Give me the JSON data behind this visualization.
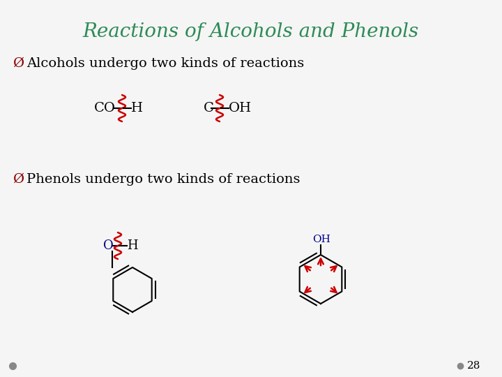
{
  "title": "Reactions of Alcohols and Phenols",
  "title_color": "#2E8B57",
  "title_fontsize": 20,
  "bullet1": "Alcohols undergo two kinds of reactions",
  "bullet2": "Phenols undergo two kinds of reactions",
  "bullet_color": "#8B0000",
  "bullet_fontsize": 14,
  "background_color": "#f0f0f0",
  "text_color": "#000000",
  "page_number": "28",
  "dot_color": "#888888",
  "arrow_color": "#CC0000",
  "blue_color": "#00008B",
  "black": "#000000",
  "wavy_color": "#CC0000"
}
